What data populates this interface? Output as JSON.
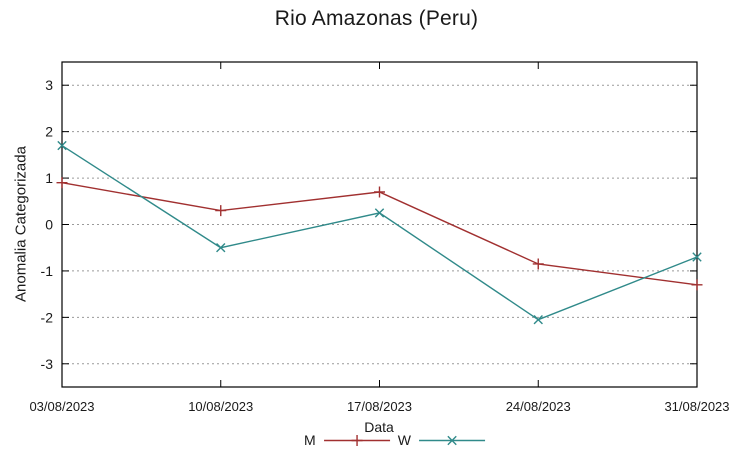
{
  "page": {
    "background": "#ffffff",
    "text_color": "#1a1a1a"
  },
  "chart_data": {
    "type": "line",
    "title": "Rio Amazonas (Peru)",
    "xlabel": "Data",
    "ylabel": "Anomalia Categorizada",
    "categories": [
      "03/08/2023",
      "10/08/2023",
      "17/08/2023",
      "24/08/2023",
      "31/08/2023"
    ],
    "series": [
      {
        "name": "M",
        "marker": "plus",
        "color": "#a13030",
        "values": [
          0.9,
          0.3,
          0.7,
          -0.85,
          -1.3
        ]
      },
      {
        "name": "W",
        "marker": "cross",
        "color": "#308a8a",
        "values": [
          1.7,
          -0.5,
          0.25,
          -2.05,
          -0.7
        ]
      }
    ],
    "yticks": [
      -3,
      -2,
      -1,
      0,
      1,
      2,
      3
    ],
    "ylim": [
      -3.5,
      3.5
    ],
    "grid": "horizontal-dashed",
    "grid_color": "#9a9a9a",
    "axis_color": "#000000",
    "legend_position": "bottom-center"
  }
}
